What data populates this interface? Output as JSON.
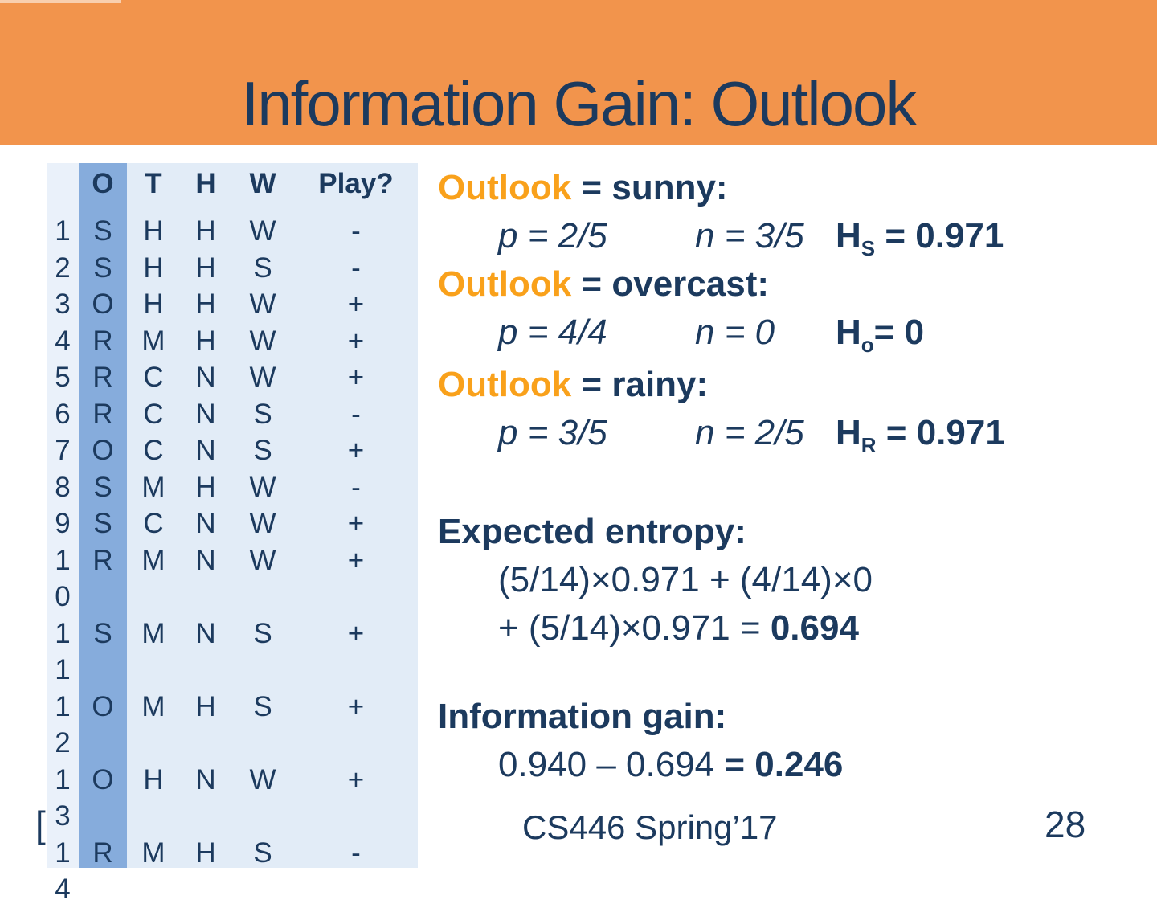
{
  "slide": {
    "title": "Information Gain: Outlook",
    "footer": {
      "course": "CS446 Spring’17",
      "page": "28",
      "stray_bracket": "["
    }
  },
  "colors": {
    "banner_orange": "#F2944C",
    "accent_orange": "#F9A11B",
    "navy_text": "#1C3A5E",
    "table_body_bg": "#E2ECF7",
    "table_rownum_bg": "#EAF1FA",
    "outlook_column_bg": "#86ACDC"
  },
  "table": {
    "headers": [
      "",
      "O",
      "T",
      "H",
      "W",
      "Play?"
    ],
    "rows": [
      {
        "no": "1",
        "o": "S",
        "t": "H",
        "h": "H",
        "w": "W",
        "play": "-"
      },
      {
        "no": "2",
        "o": "S",
        "t": "H",
        "h": "H",
        "w": "S",
        "play": "-"
      },
      {
        "no": "3",
        "o": "O",
        "t": "H",
        "h": "H",
        "w": "W",
        "play": "+"
      },
      {
        "no": "4",
        "o": "R",
        "t": "M",
        "h": "H",
        "w": "W",
        "play": "+"
      },
      {
        "no": "5",
        "o": "R",
        "t": "C",
        "h": "N",
        "w": "W",
        "play": "+"
      },
      {
        "no": "6",
        "o": "R",
        "t": "C",
        "h": "N",
        "w": "S",
        "play": "-"
      },
      {
        "no": "7",
        "o": "O",
        "t": "C",
        "h": "N",
        "w": "S",
        "play": "+"
      },
      {
        "no": "8",
        "o": "S",
        "t": "M",
        "h": "H",
        "w": "W",
        "play": "-"
      },
      {
        "no": "9",
        "o": "S",
        "t": "C",
        "h": "N",
        "w": "W",
        "play": "+"
      },
      {
        "no": "10",
        "o": "R",
        "t": "M",
        "h": "N",
        "w": "W",
        "play": "+"
      },
      {
        "no": "11",
        "o": "S",
        "t": "M",
        "h": "N",
        "w": "S",
        "play": "+"
      },
      {
        "no": "12",
        "o": "O",
        "t": "M",
        "h": "H",
        "w": "S",
        "play": "+"
      },
      {
        "no": "13",
        "o": "O",
        "t": "H",
        "h": "N",
        "w": "W",
        "play": "+"
      },
      {
        "no": "14",
        "o": "R",
        "t": "M",
        "h": "H",
        "w": "S",
        "play": "-"
      }
    ]
  },
  "sections": [
    {
      "keyword": "Outlook",
      "rest": " = sunny:",
      "p": "p = 2/5",
      "n": "n = 3/5",
      "h_base": "H",
      "h_sub": "S",
      "h_eq": " = 0.971"
    },
    {
      "keyword": "Outlook",
      "rest": " = overcast:",
      "p": "p = 4/4",
      "n": "n = 0",
      "h_base": "H",
      "h_sub": "o",
      "h_eq": "= 0"
    },
    {
      "keyword": "Outlook",
      "rest": " = rainy:",
      "p": "p = 3/5",
      "n": "n = 2/5",
      "h_base": "H",
      "h_sub": "R",
      "h_eq": " = 0.971"
    }
  ],
  "entropy": {
    "title": "Expected entropy:",
    "line1": "(5/14)×0.971 + (4/14)×0",
    "line2_normal": "+ (5/14)×0.971 = ",
    "line2_bold": "0.694"
  },
  "gain": {
    "title": "Information gain:",
    "line_normal": "0.940 – 0.694 ",
    "line_bold": "= 0.246"
  }
}
